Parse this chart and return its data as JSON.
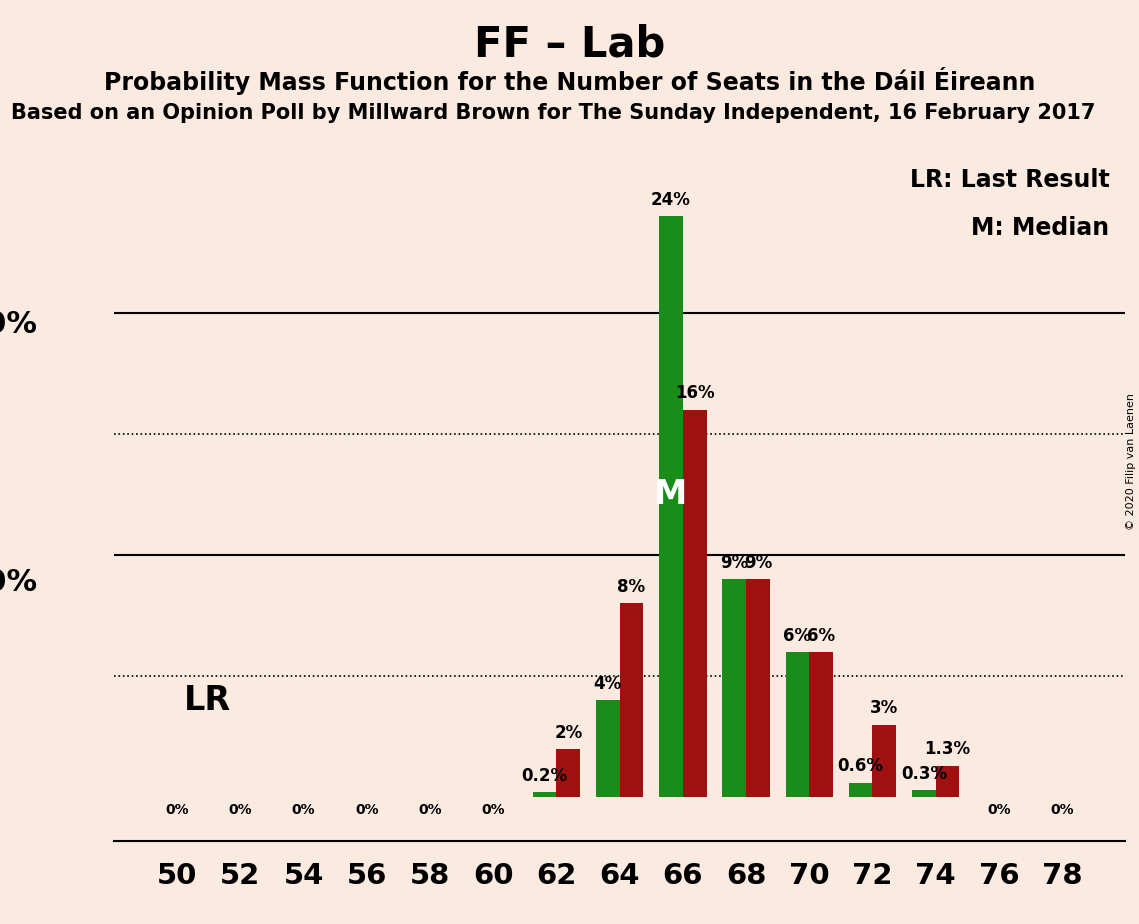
{
  "title": "FF – Lab",
  "subtitle": "Probability Mass Function for the Number of Seats in the Dáil Éireann",
  "source_line": "Based on an Opinion Poll by Millward Brown for The Sunday Independent, 16 February 2017",
  "copyright": "© 2020 Filip van Laenen",
  "seats": [
    50,
    52,
    54,
    56,
    58,
    60,
    62,
    64,
    66,
    68,
    70,
    72,
    74,
    76,
    78
  ],
  "green_values": [
    0.0,
    0.0,
    0.0,
    0.0,
    0.0,
    0.0,
    0.2,
    4.0,
    24.0,
    9.0,
    6.0,
    0.6,
    0.3,
    0.0,
    0.0
  ],
  "red_values": [
    0.0,
    0.0,
    0.0,
    0.0,
    0.0,
    0.0,
    2.0,
    8.0,
    16.0,
    9.0,
    6.0,
    3.0,
    1.3,
    0.0,
    0.0
  ],
  "green_labels": [
    "0%",
    "0%",
    "0%",
    "0%",
    "0%",
    "0%",
    "0.2%",
    "4%",
    "24%",
    "9%",
    "6%",
    "0.6%",
    "0.3%",
    "0%",
    "0%"
  ],
  "red_labels": [
    "0%",
    "0%",
    "0%",
    "0%",
    "0%",
    "0%",
    "2%",
    "8%",
    "16%",
    "9%",
    "6%",
    "3%",
    "1.3%",
    "0%",
    "0%"
  ],
  "green_color": "#1a8c1a",
  "red_color": "#a01010",
  "background_color": "#faeae0",
  "ylim_max": 27,
  "dotted_lines": [
    5.0,
    15.0
  ],
  "solid_lines": [
    10.0,
    20.0
  ],
  "median_seat": 66,
  "legend_lr": "LR: Last Result",
  "legend_m": "M: Median",
  "lr_label": "LR",
  "m_label": "M",
  "bar_width": 0.75,
  "title_fontsize": 30,
  "subtitle_fontsize": 17,
  "source_fontsize": 15,
  "bar_label_fontsize": 12,
  "tick_fontsize": 21,
  "ylabel_fontsize": 22,
  "legend_fontsize": 17,
  "lr_fontsize": 24,
  "m_fontsize": 24
}
